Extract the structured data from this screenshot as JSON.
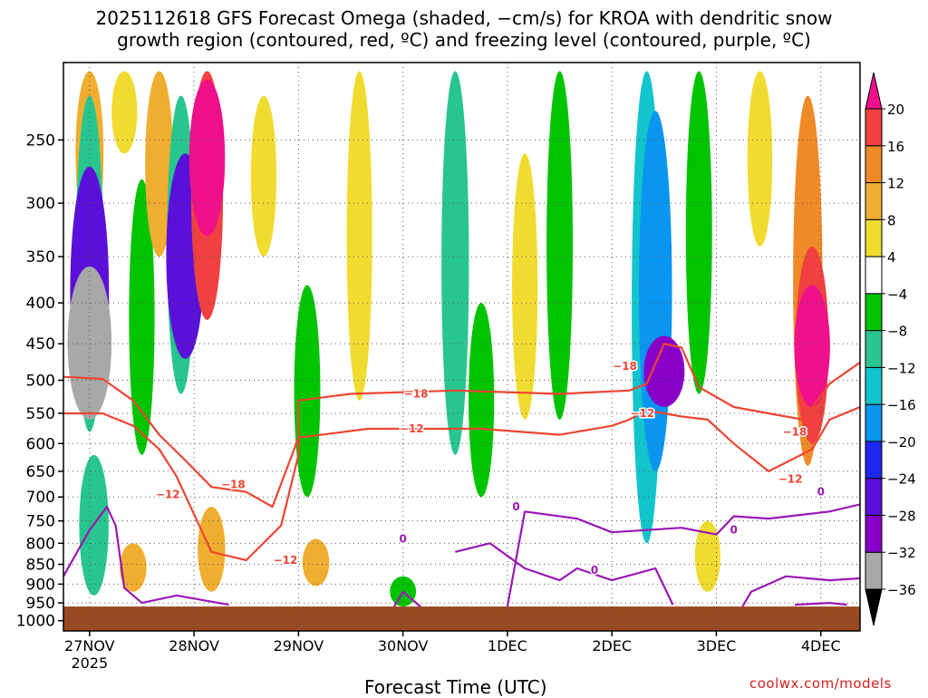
{
  "title_line1": "2025112618 GFS Forecast Omega (shaded, −cm/s) for KROA with dendritic snow",
  "title_line2": "growth region (contoured, red, ºC) and freezing level (contoured, purple, ºC)",
  "credit": "coolwx.com/models",
  "colors": {
    "ground": "#9a4a22",
    "dgz_contour": "#ee4433",
    "freezing_contour": "#9a17b5",
    "grid": "#555555"
  },
  "chart_data": {
    "type": "heatmap",
    "title": "2025112618 GFS Forecast Omega (shaded, −cm/s) for KROA with dendritic snow growth region (contoured, red, ºC) and freezing level (contoured, purple, ºC)",
    "xlabel": "Forecast Time (UTC)",
    "ylabel": "",
    "x_ticks": [
      "27NOV",
      "28NOV",
      "29NOV",
      "30NOV",
      "1DEC",
      "2DEC",
      "3DEC",
      "4DEC"
    ],
    "x_tick_hours": [
      0,
      24,
      48,
      72,
      96,
      120,
      144,
      168
    ],
    "x_year_label": "2025",
    "xlim_hours": [
      -6,
      177
    ],
    "y_ticks": [
      250,
      300,
      350,
      400,
      450,
      500,
      550,
      600,
      650,
      700,
      750,
      800,
      850,
      900,
      950,
      1000
    ],
    "ylim_hpa": [
      200,
      1030
    ],
    "y_scale": "log",
    "grid": true,
    "colorbar": {
      "levels": [
        -36,
        -32,
        -28,
        -24,
        -20,
        -16,
        -12,
        -8,
        -4,
        4,
        8,
        12,
        16,
        20
      ],
      "colors": [
        "#000000",
        "#a8a8a8",
        "#8800c8",
        "#5a10d8",
        "#1c28f0",
        "#0a96f0",
        "#12c4cc",
        "#28c68e",
        "#00c400",
        "#ffffff",
        "#f0dc30",
        "#f0ae30",
        "#f08a28",
        "#f04040",
        "#f0108a"
      ]
    },
    "omega_regions": [
      {
        "hour": 0,
        "p_top": 205,
        "p_bot": 330,
        "value": 10
      },
      {
        "hour": 0,
        "p_top": 220,
        "p_bot": 580,
        "value": -10
      },
      {
        "hour": 0,
        "p_top": 270,
        "p_bot": 560,
        "value": -27
      },
      {
        "hour": 0,
        "p_top": 360,
        "p_bot": 560,
        "value": -35
      },
      {
        "hour": 1,
        "p_top": 620,
        "p_bot": 930,
        "value": -12
      },
      {
        "hour": 8,
        "p_top": 205,
        "p_bot": 260,
        "value": 6
      },
      {
        "hour": 12,
        "p_top": 280,
        "p_bot": 620,
        "value": -6
      },
      {
        "hour": 16,
        "p_top": 205,
        "p_bot": 350,
        "value": 10
      },
      {
        "hour": 21,
        "p_top": 220,
        "p_bot": 520,
        "value": -10
      },
      {
        "hour": 22,
        "p_top": 260,
        "p_bot": 470,
        "value": -26
      },
      {
        "hour": 27,
        "p_top": 205,
        "p_bot": 420,
        "value": 16
      },
      {
        "hour": 27,
        "p_top": 210,
        "p_bot": 330,
        "value": 22
      },
      {
        "hour": 10,
        "p_top": 800,
        "p_bot": 920,
        "value": 8
      },
      {
        "hour": 28,
        "p_top": 720,
        "p_bot": 920,
        "value": 9
      },
      {
        "hour": 40,
        "p_top": 220,
        "p_bot": 350,
        "value": 6
      },
      {
        "hour": 50,
        "p_top": 380,
        "p_bot": 700,
        "value": -7
      },
      {
        "hour": 52,
        "p_top": 790,
        "p_bot": 905,
        "value": 8
      },
      {
        "hour": 62,
        "p_top": 205,
        "p_bot": 530,
        "value": 6
      },
      {
        "hour": 72,
        "p_top": 880,
        "p_bot": 960,
        "value": -7
      },
      {
        "hour": 84,
        "p_top": 205,
        "p_bot": 620,
        "value": -9
      },
      {
        "hour": 90,
        "p_top": 400,
        "p_bot": 700,
        "value": -6
      },
      {
        "hour": 100,
        "p_top": 260,
        "p_bot": 560,
        "value": 6
      },
      {
        "hour": 108,
        "p_top": 205,
        "p_bot": 560,
        "value": -7
      },
      {
        "hour": 128,
        "p_top": 205,
        "p_bot": 800,
        "value": -13
      },
      {
        "hour": 130,
        "p_top": 230,
        "p_bot": 650,
        "value": -18
      },
      {
        "hour": 132,
        "p_top": 440,
        "p_bot": 540,
        "value": -30
      },
      {
        "hour": 140,
        "p_top": 205,
        "p_bot": 520,
        "value": -7
      },
      {
        "hour": 142,
        "p_top": 750,
        "p_bot": 920,
        "value": 6
      },
      {
        "hour": 154,
        "p_top": 205,
        "p_bot": 340,
        "value": 5
      },
      {
        "hour": 165,
        "p_top": 220,
        "p_bot": 640,
        "value": 12
      },
      {
        "hour": 166,
        "p_top": 340,
        "p_bot": 600,
        "value": 18
      },
      {
        "hour": 166,
        "p_top": 380,
        "p_bot": 540,
        "value": 22
      }
    ],
    "contours_dgz": [
      {
        "value": -18,
        "points": [
          [
            -6,
            495
          ],
          [
            3,
            498
          ],
          [
            10,
            530
          ],
          [
            16,
            585
          ],
          [
            22,
            630
          ],
          [
            28,
            680
          ],
          [
            36,
            690
          ],
          [
            42,
            720
          ],
          [
            48,
            590
          ],
          [
            48,
            530
          ],
          [
            60,
            520
          ],
          [
            84,
            515
          ],
          [
            108,
            520
          ],
          [
            124,
            515
          ],
          [
            128,
            505
          ],
          [
            132,
            450
          ],
          [
            136,
            455
          ],
          [
            140,
            510
          ],
          [
            148,
            540
          ],
          [
            156,
            550
          ],
          [
            164,
            560
          ],
          [
            170,
            505
          ],
          [
            177,
            475
          ]
        ]
      },
      {
        "value": -12,
        "points": [
          [
            -6,
            550
          ],
          [
            3,
            550
          ],
          [
            10,
            570
          ],
          [
            16,
            610
          ],
          [
            20,
            660
          ],
          [
            28,
            820
          ],
          [
            36,
            840
          ],
          [
            44,
            760
          ],
          [
            48,
            620
          ],
          [
            48,
            590
          ],
          [
            64,
            575
          ],
          [
            90,
            575
          ],
          [
            108,
            585
          ],
          [
            120,
            570
          ],
          [
            124,
            560
          ],
          [
            128,
            545
          ],
          [
            136,
            555
          ],
          [
            142,
            560
          ],
          [
            148,
            600
          ],
          [
            156,
            650
          ],
          [
            166,
            610
          ],
          [
            170,
            560
          ],
          [
            177,
            540
          ]
        ]
      }
    ],
    "contours_freezing": [
      {
        "value": 0,
        "points": [
          [
            -6,
            880
          ],
          [
            0,
            770
          ],
          [
            4,
            720
          ],
          [
            6,
            760
          ],
          [
            8,
            910
          ],
          [
            12,
            950
          ],
          [
            20,
            930
          ],
          [
            32,
            955
          ]
        ]
      },
      {
        "value": 0,
        "points": [
          [
            70,
            960
          ],
          [
            72,
            920
          ],
          [
            76,
            960
          ]
        ]
      },
      {
        "value": 0,
        "points": [
          [
            84,
            820
          ],
          [
            92,
            800
          ],
          [
            100,
            860
          ],
          [
            108,
            890
          ],
          [
            112,
            860
          ],
          [
            120,
            890
          ],
          [
            130,
            860
          ],
          [
            134,
            955
          ]
        ]
      },
      {
        "value": 0,
        "points": [
          [
            96,
            960
          ],
          [
            100,
            730
          ],
          [
            112,
            745
          ],
          [
            120,
            775
          ],
          [
            136,
            765
          ],
          [
            144,
            780
          ],
          [
            148,
            740
          ],
          [
            156,
            745
          ],
          [
            170,
            730
          ],
          [
            177,
            715
          ]
        ]
      },
      {
        "value": 0,
        "points": [
          [
            150,
            960
          ],
          [
            152,
            920
          ],
          [
            160,
            880
          ],
          [
            170,
            890
          ],
          [
            177,
            885
          ]
        ]
      },
      {
        "value": 0,
        "points": [
          [
            162,
            955
          ],
          [
            170,
            950
          ],
          [
            174,
            955
          ]
        ]
      }
    ],
    "contour_labels": [
      {
        "text": "−18",
        "hour": 33,
        "p": 675,
        "color": "dgz"
      },
      {
        "text": "−12",
        "hour": 18,
        "p": 695,
        "color": "dgz"
      },
      {
        "text": "−12",
        "hour": 45,
        "p": 840,
        "color": "dgz"
      },
      {
        "text": "−18",
        "hour": 75,
        "p": 520,
        "color": "dgz"
      },
      {
        "text": "−12",
        "hour": 74,
        "p": 575,
        "color": "dgz"
      },
      {
        "text": "−18",
        "hour": 123,
        "p": 480,
        "color": "dgz"
      },
      {
        "text": "−12",
        "hour": 127,
        "p": 550,
        "color": "dgz"
      },
      {
        "text": "−18",
        "hour": 162,
        "p": 580,
        "color": "dgz"
      },
      {
        "text": "−12",
        "hour": 161,
        "p": 665,
        "color": "dgz"
      },
      {
        "text": "0",
        "hour": 98,
        "p": 720,
        "color": "freezing"
      },
      {
        "text": "0",
        "hour": 72,
        "p": 790,
        "color": "freezing"
      },
      {
        "text": "0",
        "hour": 116,
        "p": 865,
        "color": "freezing"
      },
      {
        "text": "0",
        "hour": 148,
        "p": 770,
        "color": "freezing"
      },
      {
        "text": "0",
        "hour": 168,
        "p": 690,
        "color": "freezing"
      }
    ],
    "ground": {
      "hpa_top": 960
    }
  }
}
